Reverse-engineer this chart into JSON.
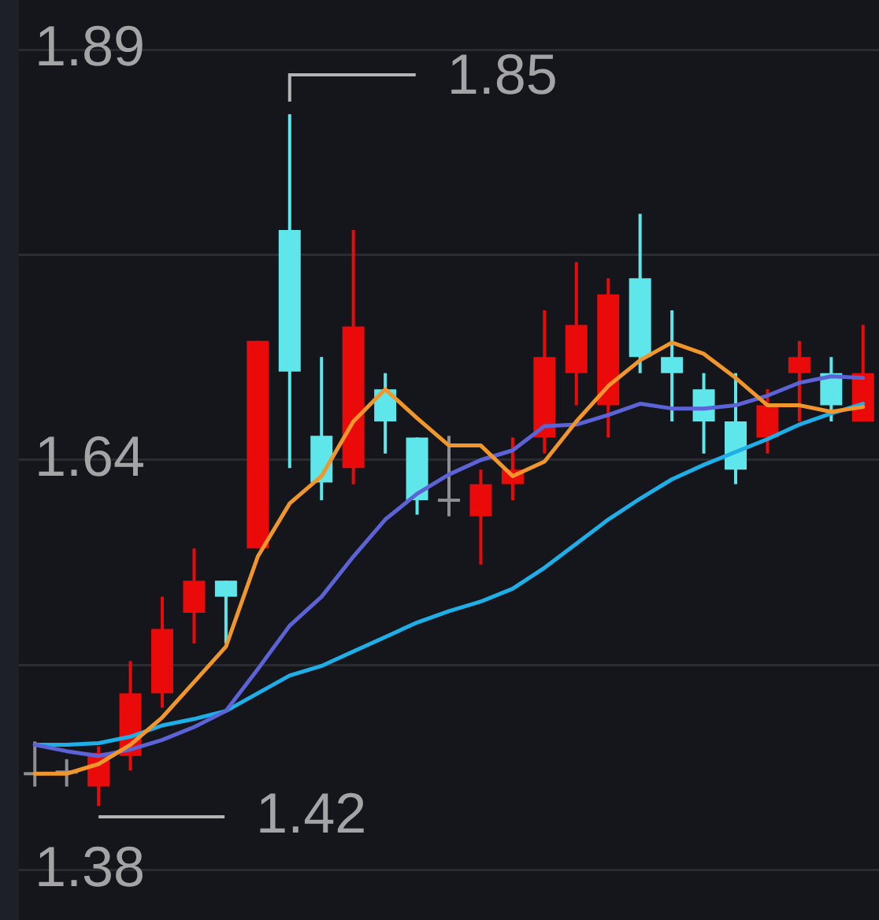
{
  "chart_data": {
    "type": "candlestick",
    "categories": [
      null,
      null,
      null,
      null,
      null,
      null,
      null,
      null,
      null,
      null,
      null,
      null,
      null,
      null,
      null,
      null,
      null,
      null,
      null,
      null,
      null,
      null,
      null,
      null,
      null,
      null,
      null
    ],
    "ohlc": [
      [
        1.44,
        1.46,
        1.432,
        1.44
      ],
      [
        1.441,
        1.449,
        1.432,
        1.441
      ],
      [
        1.432,
        1.457,
        1.42,
        1.453
      ],
      [
        1.451,
        1.51,
        1.442,
        1.49
      ],
      [
        1.49,
        1.55,
        1.481,
        1.53
      ],
      [
        1.54,
        1.58,
        1.521,
        1.56
      ],
      [
        1.56,
        1.56,
        1.521,
        1.55
      ],
      [
        1.58,
        1.709,
        1.58,
        1.709
      ],
      [
        1.778,
        1.85,
        1.63,
        1.69
      ],
      [
        1.65,
        1.699,
        1.61,
        1.621
      ],
      [
        1.63,
        1.778,
        1.62,
        1.718
      ],
      [
        1.679,
        1.689,
        1.639,
        1.659
      ],
      [
        1.649,
        1.649,
        1.601,
        1.61
      ],
      [
        1.61,
        1.65,
        1.6,
        1.61
      ],
      [
        1.6,
        1.629,
        1.57,
        1.62
      ],
      [
        1.62,
        1.649,
        1.61,
        1.629
      ],
      [
        1.649,
        1.728,
        1.639,
        1.699
      ],
      [
        1.689,
        1.758,
        1.669,
        1.719
      ],
      [
        1.669,
        1.748,
        1.649,
        1.738
      ],
      [
        1.748,
        1.788,
        1.689,
        1.699
      ],
      [
        1.699,
        1.728,
        1.659,
        1.689
      ],
      [
        1.679,
        1.689,
        1.639,
        1.659
      ],
      [
        1.659,
        1.689,
        1.62,
        1.629
      ],
      [
        1.649,
        1.679,
        1.639,
        1.669
      ],
      [
        1.689,
        1.709,
        1.659,
        1.699
      ],
      [
        1.689,
        1.699,
        1.659,
        1.669
      ],
      [
        1.659,
        1.719,
        1.659,
        1.689
      ]
    ],
    "colors": [
      "#8e8e93",
      "#8e8e93",
      "#ea0a0a",
      "#ea0a0a",
      "#ea0a0a",
      "#ea0a0a",
      "#5ee6ea",
      "#ea0a0a",
      "#5ee6ea",
      "#5ee6ea",
      "#ea0a0a",
      "#5ee6ea",
      "#5ee6ea",
      "#8e8e93",
      "#ea0a0a",
      "#ea0a0a",
      "#ea0a0a",
      "#ea0a0a",
      "#ea0a0a",
      "#5ee6ea",
      "#5ee6ea",
      "#5ee6ea",
      "#5ee6ea",
      "#ea0a0a",
      "#ea0a0a",
      "#5ee6ea",
      "#ea0a0a"
    ],
    "series": [
      {
        "type": "line",
        "color": "#f0962a",
        "values": [
          1.44,
          1.44,
          1.446,
          1.458,
          1.475,
          1.497,
          1.519,
          1.575,
          1.608,
          1.625,
          1.659,
          1.679,
          1.661,
          1.644,
          1.644,
          1.625,
          1.634,
          1.659,
          1.681,
          1.697,
          1.708,
          1.701,
          1.686,
          1.669,
          1.669,
          1.665,
          1.668
        ]
      },
      {
        "type": "line",
        "color": "#5c63d6",
        "values": [
          1.458,
          1.454,
          1.451,
          1.455,
          1.461,
          1.469,
          1.479,
          1.505,
          1.532,
          1.55,
          1.575,
          1.598,
          1.614,
          1.626,
          1.635,
          1.641,
          1.656,
          1.657,
          1.663,
          1.67,
          1.667,
          1.667,
          1.669,
          1.675,
          1.683,
          1.687,
          1.686
        ]
      },
      {
        "type": "line",
        "color": "#1eaee8",
        "values": [
          1.458,
          1.458,
          1.459,
          1.463,
          1.47,
          1.474,
          1.479,
          1.49,
          1.501,
          1.507,
          1.516,
          1.525,
          1.534,
          1.541,
          1.547,
          1.555,
          1.568,
          1.583,
          1.598,
          1.611,
          1.623,
          1.632,
          1.64,
          1.648,
          1.657,
          1.664,
          1.67
        ]
      }
    ],
    "ylim": [
      1.38,
      1.89
    ],
    "yticks": [
      1.38,
      {
        "value": 1.5075,
        "label": null
      },
      {
        "value": 1.635,
        "label": "1.64"
      },
      {
        "value": 1.7625,
        "label": null
      },
      1.89
    ],
    "grid": "y",
    "tick_labels": "y",
    "marker": "none",
    "legend": false,
    "annotations": [
      "1.85",
      "1.42"
    ]
  }
}
